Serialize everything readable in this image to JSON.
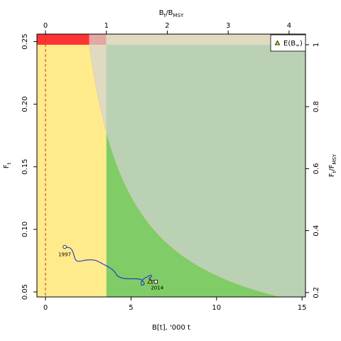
{
  "chart_data": {
    "type": "scatter",
    "xlabel": "B[t], '000 t",
    "ylabel": "F",
    "ylabel_sub": "t",
    "top_label_main": "B",
    "top_label_sub1": "t",
    "top_label_slash": "/B",
    "top_label_sub2": "MSY",
    "right_label_main1": "F",
    "right_label_sub1": "t",
    "right_label_slash": "/F",
    "right_label_sub2": "MSY",
    "xlim": [
      -0.5,
      15.2
    ],
    "ylim": [
      0.046,
      0.256
    ],
    "bmsy": 3.56,
    "fmsy": 0.2475,
    "k": 0.633,
    "x_ticks": [
      0,
      5,
      10,
      15
    ],
    "y_ticks": [
      0.05,
      0.1,
      0.15,
      0.2,
      0.25
    ],
    "x_tick_labels": [
      "0",
      "5",
      "10",
      "15"
    ],
    "y_tick_labels": [
      "0.05",
      "0.10",
      "0.15",
      "0.20",
      "0.25"
    ],
    "top_ticks": [
      0,
      1,
      2,
      3,
      4
    ],
    "top_tick_labels": [
      "0",
      "1",
      "2",
      "3",
      "4"
    ],
    "right_ticks": [
      0.2,
      0.4,
      0.6,
      0.8,
      1.0
    ],
    "right_tick_labels": [
      "0.2",
      "0.4",
      "0.6",
      "0.8",
      "1"
    ],
    "trajectory": [
      [
        1.12,
        0.086
      ],
      [
        1.45,
        0.085
      ],
      [
        1.6,
        0.082
      ],
      [
        1.75,
        0.076
      ],
      [
        1.95,
        0.0745
      ],
      [
        2.4,
        0.0755
      ],
      [
        2.9,
        0.0753
      ],
      [
        3.4,
        0.072
      ],
      [
        3.8,
        0.069
      ],
      [
        4.05,
        0.066
      ],
      [
        4.2,
        0.063
      ],
      [
        4.5,
        0.061
      ],
      [
        4.9,
        0.0605
      ],
      [
        5.3,
        0.0605
      ],
      [
        5.6,
        0.0598
      ],
      [
        5.78,
        0.0565
      ],
      [
        5.6,
        0.0555
      ],
      [
        5.62,
        0.0585
      ],
      [
        5.75,
        0.0605
      ],
      [
        6.0,
        0.0625
      ],
      [
        6.15,
        0.0635
      ],
      [
        6.2,
        0.0622
      ],
      [
        6.05,
        0.0608
      ],
      [
        6.18,
        0.0595
      ],
      [
        6.35,
        0.0588
      ],
      [
        6.45,
        0.0582
      ]
    ],
    "start_point": {
      "label": "1997",
      "x": 1.12,
      "y": 0.086
    },
    "end_point": {
      "label": "2014",
      "x": 6.45,
      "y": 0.0582
    },
    "projection_point": {
      "x": 6.12,
      "y": 0.0583
    },
    "reference_line_x": 0,
    "legend": {
      "position": "top-right",
      "marker": "triangle",
      "label_main": "E(B",
      "label_sub": "∞",
      "label_close": ")"
    },
    "colors": {
      "zone_red": "#ff3333",
      "zone_pink": "#e3a7a6",
      "zone_tan": "#e0dbc0",
      "zone_yellow": "#ffea8c",
      "zone_green": "#80cc66",
      "zone_sage": "#bad1b4",
      "trajectory": "#2233cc",
      "reference_line": "#c0392b",
      "marker_fill": "#e8d800"
    }
  }
}
